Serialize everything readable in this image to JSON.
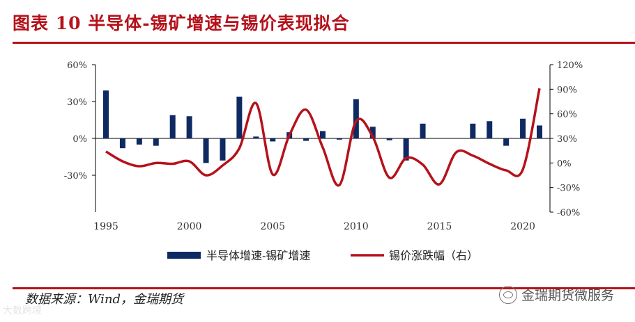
{
  "header": {
    "title": "图表 10 半导体-锡矿增速与锡价表现拟合"
  },
  "footer": {
    "source_label": "数据来源：",
    "source_text": "Wind，金瑞期货",
    "watermark": "金瑞期货微服务",
    "watermark_left": "大数跨境"
  },
  "colors": {
    "bar": "#0f2a63",
    "line": "#b5121b",
    "title": "#b5121b"
  },
  "chart_data": {
    "type": "bar",
    "title": "",
    "xlabel": "",
    "ylabel": "",
    "x_ticks": [
      "1995",
      "2000",
      "2005",
      "2010",
      "2015",
      "2020"
    ],
    "y_left_ticks": [
      "60%",
      "30%",
      "0%",
      "-30%"
    ],
    "y_right_ticks": [
      "120%",
      "90%",
      "60%",
      "30%",
      "0%",
      "-30%",
      "-60%"
    ],
    "ylim_left": [
      -0.6,
      0.6
    ],
    "ylim_right": [
      -0.6,
      1.2
    ],
    "xlim": [
      1995,
      2021
    ],
    "legend_position": "bottom",
    "series": [
      {
        "name": "半导体增速-锡矿增速",
        "type": "bar",
        "axis": "left",
        "x": [
          1995,
          1996,
          1997,
          1998,
          1999,
          2000,
          2001,
          2002,
          2003,
          2004,
          2005,
          2006,
          2007,
          2008,
          2009,
          2010,
          2011,
          2012,
          2013,
          2014,
          2015,
          2016,
          2017,
          2018,
          2019,
          2020,
          2021
        ],
        "values": [
          0.39,
          -0.08,
          -0.05,
          -0.06,
          0.19,
          0.18,
          -0.2,
          -0.18,
          0.34,
          0.015,
          -0.025,
          0.05,
          -0.02,
          0.06,
          -0.01,
          0.32,
          0.095,
          -0.015,
          -0.18,
          0.12,
          0.0,
          0.0,
          0.12,
          0.14,
          -0.06,
          0.16,
          0.105
        ]
      },
      {
        "name": "锡价涨跌幅（右）",
        "type": "line",
        "axis": "right",
        "x": [
          1995,
          1996,
          1997,
          1998,
          1999,
          2000,
          2001,
          2002,
          2003,
          2004,
          2005,
          2006,
          2007,
          2008,
          2009,
          2010,
          2011,
          2012,
          2013,
          2014,
          2015,
          2016,
          2017,
          2018,
          2019,
          2020,
          2021
        ],
        "values": [
          0.14,
          0.02,
          -0.04,
          0.0,
          -0.01,
          0.02,
          -0.15,
          -0.03,
          0.18,
          0.73,
          -0.14,
          0.34,
          0.65,
          0.19,
          -0.27,
          0.51,
          0.32,
          -0.18,
          0.06,
          -0.02,
          -0.26,
          0.13,
          0.09,
          -0.01,
          -0.09,
          -0.08,
          0.91
        ]
      }
    ]
  }
}
